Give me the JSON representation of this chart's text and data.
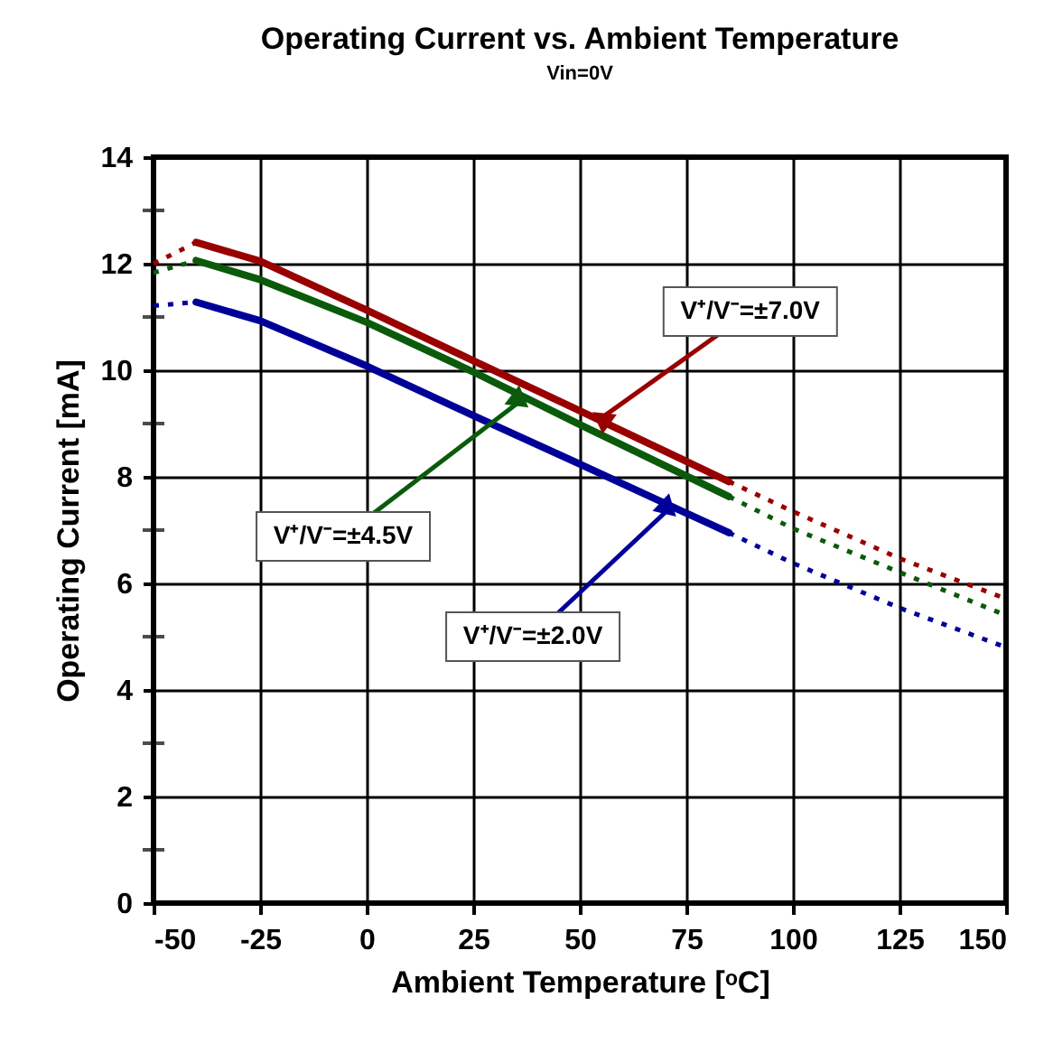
{
  "chart_data": {
    "type": "line",
    "title": "Operating Current vs. Ambient Temperature",
    "subtitle": "Vin=0V",
    "xlabel": "Ambient Temperature [ᵒC]",
    "ylabel": "Operating Current [mA]",
    "xlim": [
      -50,
      150
    ],
    "xticks": [
      -50,
      -25,
      0,
      25,
      50,
      75,
      100,
      125,
      150
    ],
    "ylim": [
      0,
      14
    ],
    "yticks": [
      0,
      {
        "value": 1,
        "label": null
      },
      2,
      {
        "value": 3,
        "label": null
      },
      4,
      {
        "value": 5,
        "label": null
      },
      6,
      {
        "value": 7,
        "label": null
      },
      8,
      {
        "value": 9,
        "label": null
      },
      10,
      {
        "value": 11,
        "label": null
      },
      12,
      {
        "value": 13,
        "label": null
      },
      14
    ],
    "grid": true,
    "series": [
      {
        "color": "#990000",
        "line_style": "solid",
        "x": [
          -40,
          -25,
          0,
          25,
          50,
          85
        ],
        "values": [
          12.4,
          12.05,
          11.13,
          10.18,
          9.24,
          7.91
        ]
      },
      {
        "color": "#990000",
        "line_style": "dotted",
        "x": [
          -50,
          -40
        ],
        "values": [
          12.0,
          12.4
        ]
      },
      {
        "color": "#990000",
        "line_style": "dotted",
        "x": [
          85,
          100,
          125,
          150
        ],
        "values": [
          7.91,
          7.35,
          6.47,
          5.71
        ]
      },
      {
        "color": "#0b5a0b",
        "line_style": "solid",
        "x": [
          -40,
          -25,
          0,
          25,
          50,
          85
        ],
        "values": [
          12.06,
          11.7,
          10.9,
          9.97,
          8.98,
          7.63
        ]
      },
      {
        "color": "#0b5a0b",
        "line_style": "dotted",
        "x": [
          -50,
          -40
        ],
        "values": [
          11.83,
          12.06
        ]
      },
      {
        "color": "#0b5a0b",
        "line_style": "dotted",
        "x": [
          85,
          100,
          125,
          150
        ],
        "values": [
          7.63,
          7.03,
          6.21,
          5.4
        ]
      },
      {
        "color": "#000099",
        "line_style": "solid",
        "x": [
          -40,
          -25,
          0,
          25,
          50,
          85
        ],
        "values": [
          11.28,
          10.93,
          10.08,
          9.15,
          8.24,
          6.95
        ]
      },
      {
        "color": "#000099",
        "line_style": "dotted",
        "x": [
          -50,
          -40
        ],
        "values": [
          11.21,
          11.28
        ]
      },
      {
        "color": "#000099",
        "line_style": "dotted",
        "x": [
          85,
          100,
          125,
          150
        ],
        "values": [
          6.95,
          6.38,
          5.54,
          4.8
        ]
      }
    ],
    "annotations": [
      {
        "text": "V⁺/V⁻=±7.0V",
        "x": 55,
        "y": 9.1
      },
      {
        "text": "V⁺/V⁻=±4.5V",
        "x": 36,
        "y": 9.42
      },
      {
        "text": "V⁺/V⁻=±2.0V",
        "x": 70.8,
        "y": 7.39
      }
    ]
  }
}
